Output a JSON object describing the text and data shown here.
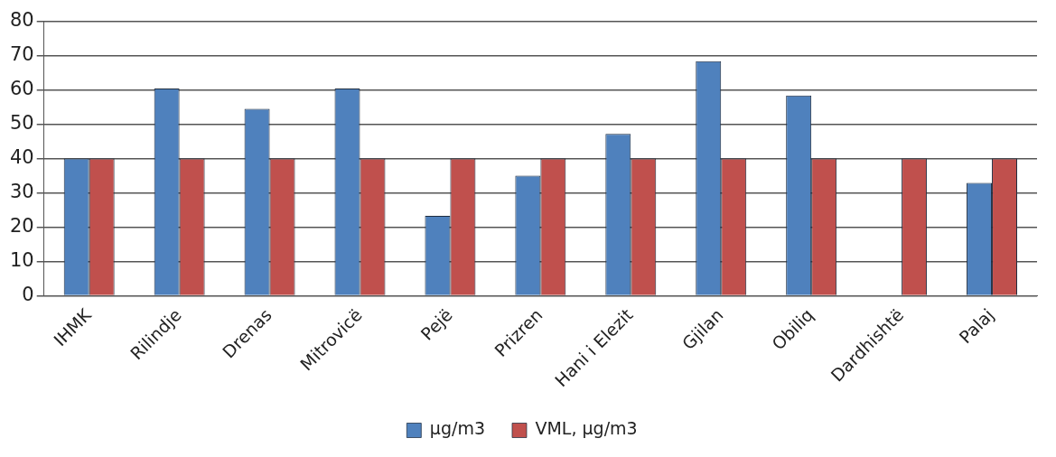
{
  "chart_data": {
    "type": "bar",
    "categories": [
      "IHMK",
      "Rilindje",
      "Drenas",
      "Mitrovicë",
      "Pejë",
      "Prizren",
      "Hani i Elezit",
      "Gjilan",
      "Obiliq",
      "Dardhishtë",
      "Palaj"
    ],
    "series": [
      {
        "name": "µg/m3",
        "color": "#4f81bd",
        "values": [
          40,
          60.4,
          54.5,
          60.4,
          23.3,
          35,
          47.2,
          68.4,
          58.4,
          null,
          32.9
        ]
      },
      {
        "name": "VML, µg/m3",
        "color": "#c0504d",
        "values": [
          40,
          40,
          40,
          40,
          40,
          40,
          40,
          40,
          40,
          40,
          40
        ]
      }
    ],
    "ylim": [
      0,
      80
    ],
    "yticks": [
      0,
      10,
      20,
      30,
      40,
      50,
      60,
      70,
      80
    ],
    "grid": "y",
    "legend": "bottom"
  }
}
